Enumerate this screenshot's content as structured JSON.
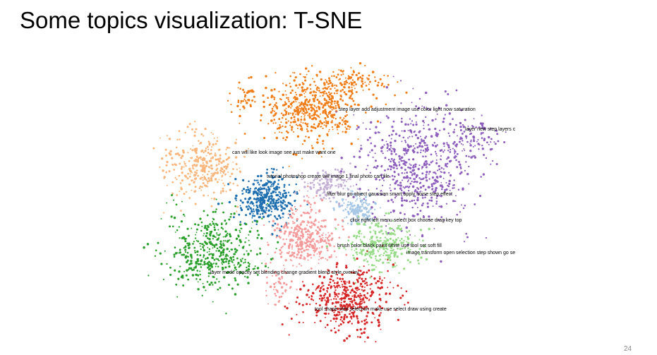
{
  "slide": {
    "title": "Some topics visualization: T-SNE",
    "page_number": "24"
  },
  "chart_data": {
    "type": "scatter",
    "title": "",
    "xlabel": "",
    "ylabel": "",
    "grid": false,
    "legend": "none",
    "clusters": [
      {
        "id": "orange",
        "color": "#f07e1a",
        "label": "step layer add adjustment image use color light now saturation"
      },
      {
        "id": "purple",
        "color": "#8e5fbd",
        "label": "layer new step layers c"
      },
      {
        "id": "light-orange",
        "color": "#f9b77e",
        "label": "can will like look image see just make want one"
      },
      {
        "id": "blue",
        "color": "#1f6fb0",
        "label": "tutorial photoshop create will image 1 final photo can file"
      },
      {
        "id": "lavender",
        "color": "#c5b0d5",
        "label": "filter blur go object gaussian smart apply noise step effect"
      },
      {
        "id": "light-blue",
        "color": "#a7c7e7",
        "label": "click right left menu select box choose drag key top"
      },
      {
        "id": "pink",
        "color": "#f59b9b",
        "label": "brush color black paint white use tool set soft fill"
      },
      {
        "id": "light-green",
        "color": "#98dc8a",
        "label": "image transform open selection step shown go se"
      },
      {
        "id": "green",
        "color": "#2ca02c",
        "label": "layer mode opacity set blending change gradient blend style overlay"
      },
      {
        "id": "red",
        "color": "#d62728",
        "label": "tool shape step selection make use select draw using create"
      }
    ]
  }
}
